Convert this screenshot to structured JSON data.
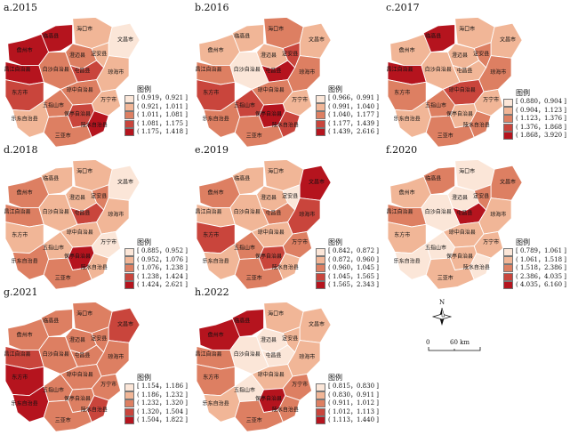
{
  "labels": [
    "临高县",
    "海口市",
    "儋州市",
    "澄迈县",
    "文昌市",
    "定安县",
    "屯昌县",
    "琼海市",
    "白沙自治县",
    "昌江自治县",
    "东方市",
    "琼中自治县",
    "五指山市",
    "万宁市",
    "乐东自治县",
    "保亭自治县",
    "陵水自治县",
    "三亚市"
  ],
  "legend_title": "图例",
  "colors": [
    "#fbe6d8",
    "#f1b697",
    "#dd7f62",
    "#c9453c",
    "#b5141e"
  ],
  "panels": [
    {
      "title": "a.2015",
      "breaks": [
        "[ 0.919，0.921 ]",
        "( 0.921，1.011 ]",
        "( 1.011，1.081 ]",
        "( 1.081，1.175 ]",
        "( 1.175，1.418 ]"
      ],
      "classes": [
        4,
        1,
        4,
        2,
        0,
        1,
        3,
        1,
        2,
        4,
        3,
        2,
        2,
        1,
        1,
        3,
        4,
        2
      ]
    },
    {
      "title": "b.2016",
      "breaks": [
        "[ 0.966，0.991 ]",
        "( 0.991，1.040 ]",
        "( 1.040，1.177 ]",
        "( 1.177，1.439 ]",
        "( 1.439，2.616 ]"
      ],
      "classes": [
        1,
        2,
        1,
        1,
        1,
        3,
        4,
        2,
        0,
        2,
        3,
        2,
        3,
        1,
        2,
        4,
        3,
        2
      ]
    },
    {
      "title": "c.2017",
      "breaks": [
        "[ 0.880，0.904 ]",
        "( 0.904，1.123 ]",
        "( 1.123，1.376 ]",
        "( 1.376，1.868 ]",
        "( 1.868，3.920 ]"
      ],
      "classes": [
        4,
        1,
        1,
        1,
        1,
        2,
        1,
        2,
        1,
        4,
        2,
        3,
        2,
        1,
        1,
        1,
        2,
        2
      ]
    },
    {
      "title": "d.2018",
      "breaks": [
        "[ 0.885，0.952 ]",
        "( 0.952，1.076 ]",
        "( 1.076，1.238 ]",
        "( 1.238，1.424 ]",
        "( 1.424，2.621 ]"
      ],
      "classes": [
        1,
        1,
        2,
        1,
        0,
        2,
        3,
        1,
        1,
        2,
        1,
        1,
        1,
        0,
        2,
        4,
        1,
        2
      ]
    },
    {
      "title": "e.2019",
      "breaks": [
        "[ 0.842，0.872 ]",
        "( 0.872，0.960 ]",
        "( 0.960，1.045 ]",
        "( 1.045，1.565 ]",
        "( 1.565，2.343 ]"
      ],
      "classes": [
        1,
        1,
        2,
        1,
        4,
        0,
        2,
        3,
        1,
        1,
        3,
        1,
        2,
        2,
        1,
        3,
        1,
        2
      ]
    },
    {
      "title": "f.2020",
      "breaks": [
        "[ 0.789，1.061 ]",
        "( 1.061，1.518 ]",
        "( 1.518，2.386 ]",
        "( 2.386，4.035 ]",
        "( 4.035，6.160 ]"
      ],
      "classes": [
        2,
        0,
        1,
        0,
        2,
        2,
        4,
        1,
        0,
        2,
        1,
        1,
        0,
        1,
        0,
        1,
        0,
        1
      ]
    },
    {
      "title": "g.2021",
      "breaks": [
        "[ 1.154，1.186 ]",
        "( 1.186，1.232 ]",
        "( 1.232，1.320 ]",
        "( 1.320，1.504 ]",
        "( 1.504，1.822 ]"
      ],
      "classes": [
        2,
        2,
        2,
        2,
        3,
        2,
        2,
        2,
        2,
        3,
        4,
        2,
        2,
        2,
        4,
        2,
        3,
        2
      ]
    },
    {
      "title": "h.2022",
      "breaks": [
        "[ 0.815，0.830 ]",
        "( 0.830，0.911 ]",
        "( 0.911，1.012 ]",
        "( 1.012，1.113 ]",
        "( 1.113，1.440 ]"
      ],
      "classes": [
        4,
        1,
        4,
        0,
        1,
        1,
        0,
        1,
        0,
        2,
        2,
        1,
        0,
        2,
        1,
        4,
        2,
        2
      ]
    }
  ],
  "north_label": "N",
  "scale": {
    "start": "0",
    "end": "60 km"
  }
}
